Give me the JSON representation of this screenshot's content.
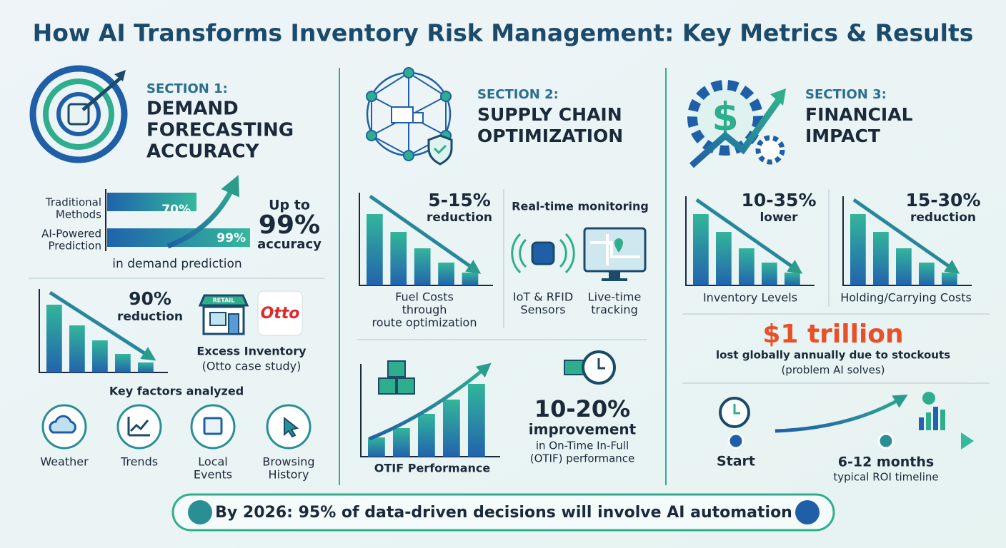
{
  "title": "How AI Transforms Inventory Risk Management: Key Metrics & Results",
  "section1": {
    "label": "SECTION 1:",
    "heading": [
      "DEMAND",
      "FORECASTING",
      "ACCURACY"
    ],
    "comparison": {
      "rows": [
        {
          "label": [
            "Traditional",
            "Methods"
          ],
          "value": "70%"
        },
        {
          "label": [
            "AI-Powered",
            "Prediction"
          ],
          "value": "99%"
        }
      ],
      "callout": [
        "Up to",
        "99%",
        "accuracy"
      ],
      "caption": "in demand prediction"
    },
    "excess": {
      "stat": "90%",
      "stat_label": "reduction",
      "store_sign": "RETAIL",
      "logo": "Otto",
      "caption": [
        "Excess Inventory",
        "(Otto case study)"
      ]
    },
    "factors": {
      "title": "Key factors analyzed",
      "items": [
        [
          "Weather"
        ],
        [
          "Trends"
        ],
        [
          "Local",
          "Events"
        ],
        [
          "Browsing",
          "History"
        ]
      ]
    }
  },
  "section2": {
    "label": "SECTION 2:",
    "heading": [
      "SUPPLY CHAIN",
      "OPTIMIZATION"
    ],
    "fuel": {
      "stat": "5-15%",
      "stat_label": "reduction",
      "caption": [
        "Fuel Costs",
        "through",
        "route optimization"
      ]
    },
    "monitoring": {
      "title": "Real-time monitoring",
      "items": [
        [
          "IoT & RFID",
          "Sensors"
        ],
        [
          "Live-time",
          "tracking"
        ]
      ]
    },
    "otif": {
      "chart_label": "OTIF Performance",
      "stat": "10-20%",
      "stat_label": "improvement",
      "caption": [
        "in On-Time In-Full",
        "(OTIF) performance"
      ]
    }
  },
  "section3": {
    "label": "SECTION 3:",
    "heading": [
      "FINANCIAL",
      "IMPACT"
    ],
    "metrics": [
      {
        "stat": "10-35%",
        "stat_label": "lower",
        "caption": "Inventory Levels"
      },
      {
        "stat": "15-30%",
        "stat_label": "reduction",
        "caption": "Holding/Carrying Costs"
      }
    ],
    "stockouts": {
      "stat": "$1 trillion",
      "caption": "lost globally annually due to stockouts",
      "note": "(problem AI solves)"
    },
    "timeline": {
      "start": "Start",
      "end": "6-12 months",
      "caption": "typical ROI timeline"
    }
  },
  "footer": "By 2026: 95% of data-driven decisions will involve AI automation"
}
